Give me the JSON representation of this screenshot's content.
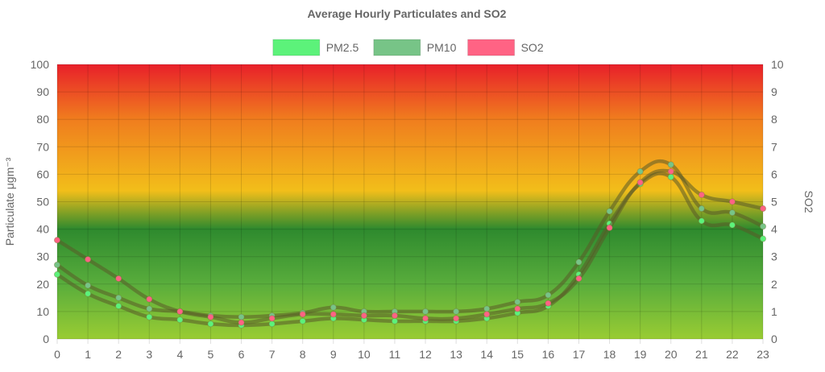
{
  "chart_data": {
    "type": "line",
    "title": "Average Hourly Particulates and SO2",
    "x": [
      0,
      1,
      2,
      3,
      4,
      5,
      6,
      7,
      8,
      9,
      10,
      11,
      12,
      13,
      14,
      15,
      16,
      17,
      18,
      19,
      20,
      21,
      22,
      23
    ],
    "y_left": {
      "label": "Particulate μgm⁻³",
      "lim": [
        0,
        100
      ],
      "ticks": [
        0,
        10,
        20,
        30,
        40,
        50,
        60,
        70,
        80,
        90,
        100
      ]
    },
    "y_right": {
      "label": "SO2",
      "lim": [
        0,
        10
      ],
      "ticks": [
        0,
        1,
        2,
        3,
        4,
        5,
        6,
        7,
        8,
        9,
        10
      ]
    },
    "grid": true,
    "legend_position": "top",
    "background_gradient": [
      "#e8202a",
      "#f07d1e",
      "#f2be1a",
      "#2e8a2e",
      "#59ad3c",
      "#99cc33"
    ],
    "series": [
      {
        "name": "PM2.5",
        "axis": "left",
        "color": "#5cf27a",
        "values": [
          23.5,
          16.5,
          12,
          8,
          7,
          5.5,
          5,
          5.5,
          6.5,
          7.5,
          7,
          6.5,
          6.5,
          6.5,
          7.5,
          9.5,
          12,
          23.5,
          42,
          56.5,
          59,
          43,
          41.5,
          36.5
        ]
      },
      {
        "name": "PM10",
        "axis": "left",
        "color": "#77c487",
        "values": [
          27,
          19.5,
          15,
          11,
          10,
          8.5,
          8,
          8.5,
          9.5,
          11.5,
          10,
          10,
          10,
          10,
          11,
          13.5,
          16,
          28,
          46.5,
          61,
          63.5,
          47.5,
          46,
          41
        ]
      },
      {
        "name": "SO2",
        "axis": "right",
        "color": "#ff6384",
        "values": [
          3.6,
          2.9,
          2.2,
          1.45,
          1.0,
          0.8,
          0.6,
          0.75,
          0.9,
          0.9,
          0.85,
          0.85,
          0.75,
          0.75,
          0.9,
          1.1,
          1.3,
          2.2,
          4.05,
          5.7,
          6.1,
          5.25,
          5.0,
          4.75
        ]
      }
    ]
  }
}
